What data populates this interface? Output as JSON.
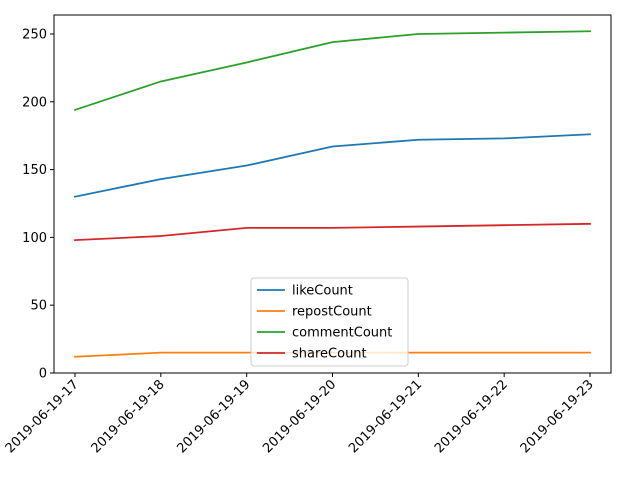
{
  "chart_data": {
    "type": "line",
    "title": "",
    "xlabel": "",
    "ylabel": "",
    "categories": [
      "2019-06-19-17",
      "2019-06-19-18",
      "2019-06-19-19",
      "2019-06-19-20",
      "2019-06-19-21",
      "2019-06-19-22",
      "2019-06-19-23"
    ],
    "ylim": [
      0,
      264
    ],
    "yticks": [
      0,
      50,
      100,
      150,
      200,
      250
    ],
    "grid": false,
    "legend_position": "lower center",
    "series": [
      {
        "name": "likeCount",
        "color": "#1f77b4",
        "values": [
          130,
          143,
          153,
          167,
          172,
          173,
          176
        ]
      },
      {
        "name": "repostCount",
        "color": "#ff7f0e",
        "values": [
          12,
          15,
          15,
          15,
          15,
          15,
          15
        ]
      },
      {
        "name": "commentCount",
        "color": "#2ca02c",
        "values": [
          194,
          215,
          229,
          244,
          250,
          251,
          252
        ]
      },
      {
        "name": "shareCount",
        "color": "#d62728",
        "values": [
          98,
          101,
          107,
          107,
          108,
          109,
          110
        ]
      }
    ]
  }
}
